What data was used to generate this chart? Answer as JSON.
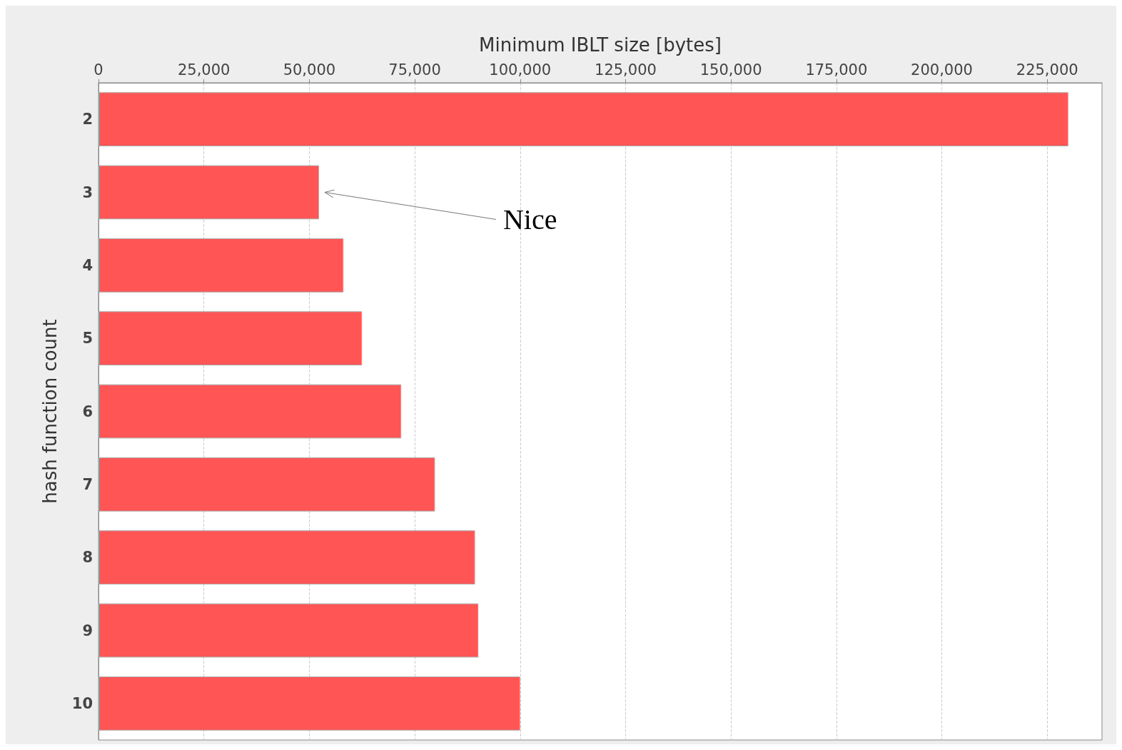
{
  "chart_data": {
    "type": "bar",
    "orientation": "horizontal",
    "xlabel": "Minimum IBLT size [bytes]",
    "ylabel": "hash function count",
    "categories": [
      "2",
      "3",
      "4",
      "5",
      "6",
      "7",
      "8",
      "9",
      "10"
    ],
    "values": [
      230000,
      52300,
      58100,
      62500,
      71800,
      79800,
      89300,
      90100,
      100000
    ],
    "color": "#ff5555",
    "xlim": [
      0,
      238000
    ],
    "xticks": [
      0,
      {
        "value": 25000,
        "label": "25,000"
      },
      {
        "value": 50000,
        "label": "50,000"
      },
      {
        "value": 75000,
        "label": "75,000"
      },
      {
        "value": 100000,
        "label": "100,000"
      },
      {
        "value": 125000,
        "label": "125,000"
      },
      {
        "value": 150000,
        "label": "150,000"
      },
      {
        "value": 175000,
        "label": "175,000"
      },
      {
        "value": 200000,
        "label": "200,000"
      },
      {
        "value": 225000,
        "label": "225,000"
      }
    ],
    "grid": "x",
    "annotations": [
      {
        "text": "Nice",
        "x": 52300,
        "y": "3"
      }
    ]
  }
}
